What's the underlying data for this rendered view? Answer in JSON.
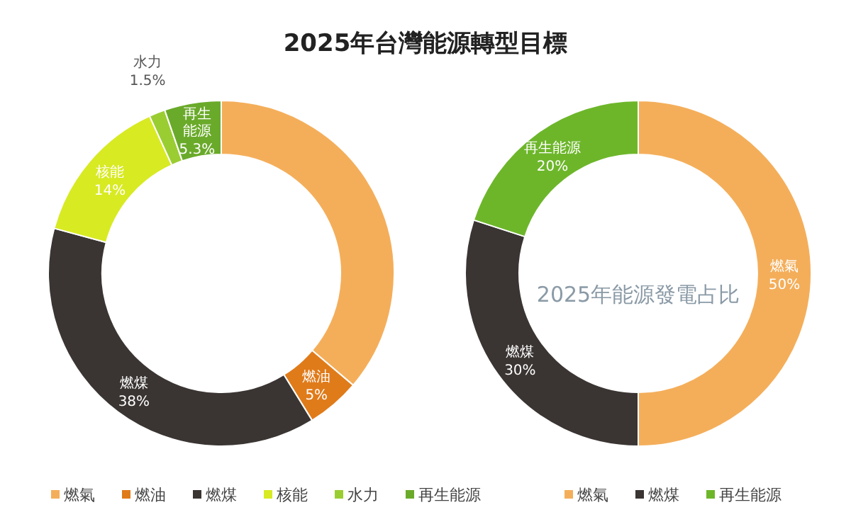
{
  "chart_data": [
    {
      "type": "donut",
      "title": "2025年台灣能源轉型目標",
      "categories": [
        "燃氣",
        "燃油",
        "燃煤",
        "核能",
        "水力",
        "再生能源"
      ],
      "values": [
        36.2,
        5,
        38,
        14,
        1.5,
        5.3
      ],
      "colors": [
        "#f4ae5a",
        "#e07b1a",
        "#3a3533",
        "#d8ea22",
        "#9acd32",
        "#6aaa2a"
      ],
      "value_labels": [
        null,
        "5%",
        "38%",
        "14%",
        "1.5%",
        "5.3%"
      ],
      "legend": "bottom"
    },
    {
      "type": "donut",
      "categories": [
        "燃氣",
        "燃煤",
        "再生能源"
      ],
      "values": [
        50,
        30,
        20
      ],
      "colors": [
        "#f4ae5a",
        "#3a3533",
        "#6db62a"
      ],
      "value_labels": [
        "50%",
        "30%",
        "20%"
      ],
      "legend": "bottom",
      "annotations": [
        "2025年能源發電占比"
      ]
    }
  ]
}
